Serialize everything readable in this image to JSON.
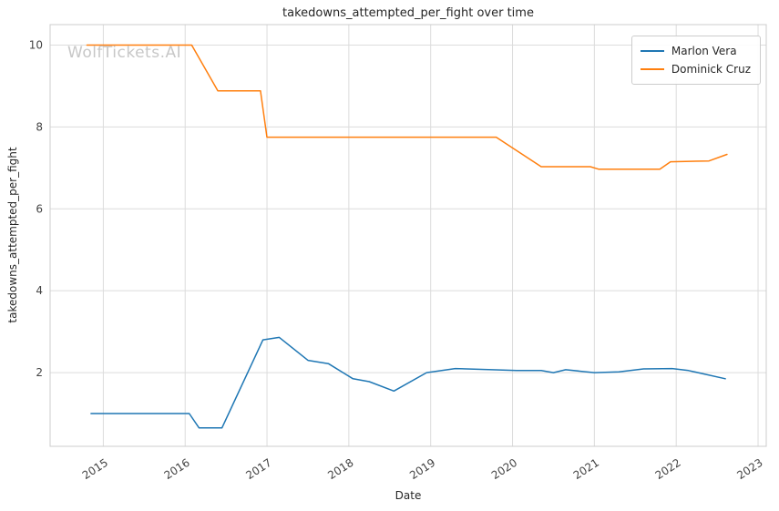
{
  "watermark": {
    "text": "WolfTickets.AI"
  },
  "chart_data": {
    "type": "line",
    "title": "takedowns_attempted_per_fight over time",
    "xlabel": "Date",
    "ylabel": "takedowns_attempted_per_fight",
    "xlim": [
      2014.35,
      2023.1
    ],
    "ylim": [
      0.2,
      10.5
    ],
    "x_ticks": [
      2015,
      2016,
      2017,
      2018,
      2019,
      2020,
      2021,
      2022,
      2023
    ],
    "y_ticks": [
      2,
      4,
      6,
      8,
      10
    ],
    "grid": true,
    "legend_position": "top-right",
    "series": [
      {
        "name": "Marlon Vera",
        "color": "#1f77b4",
        "x": [
          2014.85,
          2016.05,
          2016.17,
          2016.45,
          2016.95,
          2017.15,
          2017.5,
          2017.75,
          2018.05,
          2018.25,
          2018.55,
          2018.95,
          2019.3,
          2019.75,
          2020.05,
          2020.35,
          2020.5,
          2020.65,
          2021.0,
          2021.3,
          2021.6,
          2021.95,
          2022.15,
          2022.6
        ],
        "y": [
          1.0,
          1.0,
          0.65,
          0.65,
          2.8,
          2.86,
          2.3,
          2.22,
          1.85,
          1.78,
          1.55,
          2.0,
          2.1,
          2.07,
          2.05,
          2.05,
          2.0,
          2.07,
          2.0,
          2.02,
          2.09,
          2.1,
          2.05,
          1.85
        ]
      },
      {
        "name": "Dominick Cruz",
        "color": "#ff7f0e",
        "x": [
          2014.8,
          2016.08,
          2016.4,
          2016.92,
          2017.0,
          2019.8,
          2020.35,
          2020.95,
          2021.05,
          2021.8,
          2021.93,
          2022.4,
          2022.62
        ],
        "y": [
          10.0,
          10.0,
          8.88,
          8.88,
          7.75,
          7.75,
          7.03,
          7.03,
          6.97,
          6.97,
          7.15,
          7.17,
          7.33
        ]
      }
    ]
  }
}
